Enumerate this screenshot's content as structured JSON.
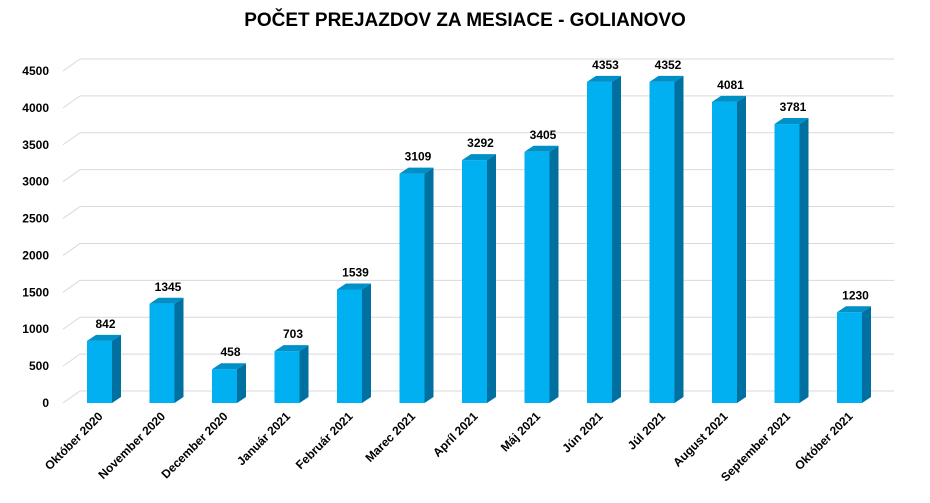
{
  "chart_data": {
    "type": "bar",
    "title": "POČET PREJAZDOV ZA MESIACE - GOLIANOVO",
    "xlabel": "",
    "ylabel": "",
    "categories": [
      "Október 2020",
      "November 2020",
      "December 2020",
      "Január 2021",
      "Február 2021",
      "Marec 2021",
      "Apríl 2021",
      "Máj 2021",
      "Jún 2021",
      "Júl 2021",
      "August 2021",
      "September 2021",
      "Október 2021"
    ],
    "values": [
      842,
      1345,
      458,
      703,
      1539,
      3109,
      3292,
      3405,
      4353,
      4352,
      4081,
      3781,
      1230
    ],
    "ylim": [
      0,
      4500
    ],
    "yticks": [
      0,
      500,
      1000,
      1500,
      2000,
      2500,
      3000,
      3500,
      4000,
      4500
    ],
    "grid": true,
    "legend": "none",
    "colors": {
      "bar_front": "#00b0f0",
      "bar_side": "#0070a0",
      "bar_top": "#0090c8",
      "grid": "#d9d9d9"
    }
  }
}
